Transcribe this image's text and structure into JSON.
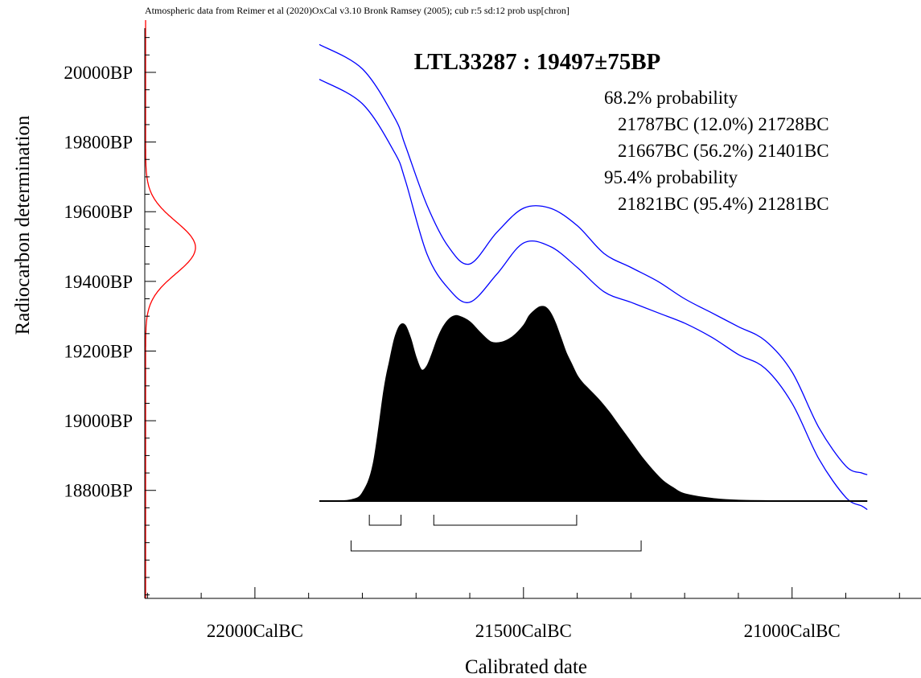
{
  "header_note": "Atmospheric data from Reimer et al (2020)OxCal v3.10 Bronk Ramsey (2005); cub r:5 sd:12 prob usp[chron]",
  "chart_data": {
    "type": "area",
    "title": "LTL33287 : 19497±75BP",
    "xlabel": "Calibrated date",
    "ylabel": "Radiocarbon determination",
    "xlim": [
      22205,
      20760
    ],
    "ylim": [
      18490,
      20150
    ],
    "x_ticks": [
      22000,
      21500,
      21000
    ],
    "x_tick_labels": [
      "22000CalBC",
      "21500CalBC",
      "21000CalBC"
    ],
    "y_ticks": [
      18800,
      19000,
      19200,
      19400,
      19600,
      19800,
      20000
    ],
    "y_tick_labels": [
      "18800BP",
      "19000BP",
      "19200BP",
      "19400BP",
      "19600BP",
      "19800BP",
      "20000BP"
    ],
    "measurement": {
      "mean": 19497,
      "sd": 75
    },
    "calibration_curve": {
      "x": [
        21880,
        21800,
        21740,
        21720,
        21680,
        21640,
        21600,
        21550,
        21500,
        21450,
        21400,
        21350,
        21300,
        21250,
        21200,
        21150,
        21100,
        21050,
        21000,
        20950,
        20900,
        20870,
        20860
      ],
      "upper": [
        20080,
        20010,
        19870,
        19790,
        19620,
        19500,
        19450,
        19540,
        19610,
        19610,
        19560,
        19480,
        19440,
        19400,
        19350,
        19310,
        19270,
        19230,
        19140,
        18980,
        18870,
        18850,
        18845
      ],
      "lower": [
        19980,
        19910,
        19770,
        19690,
        19480,
        19380,
        19340,
        19420,
        19510,
        19500,
        19440,
        19370,
        19340,
        19310,
        19280,
        19240,
        19190,
        19150,
        19050,
        18890,
        18780,
        18755,
        18745
      ]
    },
    "posterior": {
      "x": [
        21880,
        21850,
        21820,
        21800,
        21780,
        21760,
        21750,
        21740,
        21730,
        21720,
        21710,
        21700,
        21690,
        21680,
        21670,
        21660,
        21650,
        21640,
        21630,
        21620,
        21600,
        21580,
        21560,
        21540,
        21520,
        21500,
        21490,
        21480,
        21470,
        21460,
        21450,
        21440,
        21430,
        21420,
        21410,
        21400,
        21390,
        21380,
        21360,
        21340,
        21320,
        21300,
        21280,
        21260,
        21240,
        21220,
        21200,
        21150,
        21100,
        21000,
        20900,
        20860
      ],
      "density": [
        0,
        0.001,
        0.008,
        0.045,
        0.2,
        0.6,
        0.75,
        0.88,
        0.95,
        0.95,
        0.88,
        0.78,
        0.71,
        0.73,
        0.8,
        0.88,
        0.94,
        0.98,
        1.0,
        1.0,
        0.97,
        0.91,
        0.86,
        0.86,
        0.89,
        0.95,
        1.0,
        1.03,
        1.05,
        1.05,
        1.02,
        0.96,
        0.88,
        0.8,
        0.74,
        0.68,
        0.64,
        0.61,
        0.55,
        0.48,
        0.4,
        0.32,
        0.24,
        0.17,
        0.11,
        0.07,
        0.04,
        0.015,
        0.005,
        0.001,
        0,
        0
      ]
    },
    "probability_text": {
      "heading_68": "68.2% probability",
      "ranges_68": [
        "21787BC (12.0%) 21728BC",
        "21667BC (56.2%) 21401BC"
      ],
      "heading_95": "95.4% probability",
      "ranges_95": [
        "21821BC (95.4%) 21281BC"
      ]
    },
    "range_brackets": {
      "sigma1": [
        [
          21787,
          21728
        ],
        [
          21667,
          21401
        ]
      ],
      "sigma2": [
        [
          21821,
          21281
        ]
      ]
    },
    "colors": {
      "curve": "#0000ff",
      "measurement": "#ff0000",
      "posterior": "#000000",
      "axes": "#000000"
    }
  }
}
